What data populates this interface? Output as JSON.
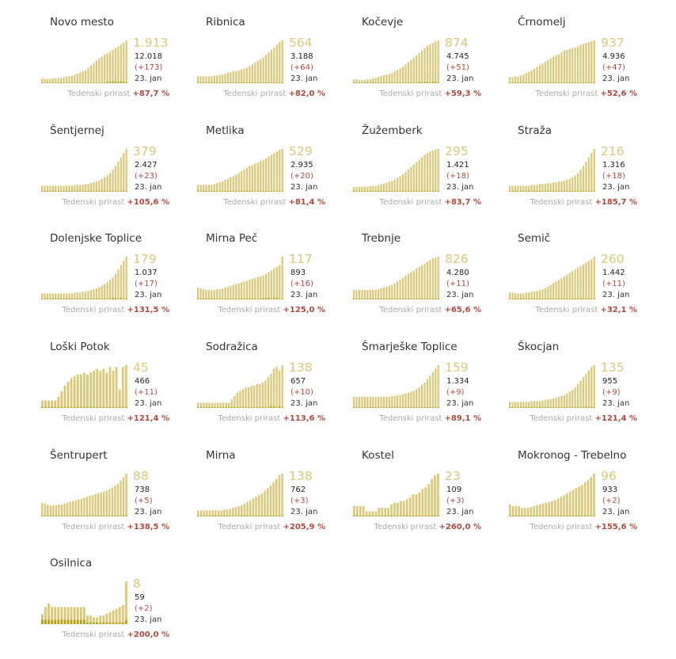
{
  "growth_label": "Tedenski prirast",
  "date_label": "23. jan",
  "colors": {
    "bar_light": "#dcc878",
    "bar_dark": "#b8a018",
    "positive": "#b04a40"
  },
  "chart_data": [
    {
      "type": "bar",
      "title": "Novo mesto",
      "value": "1.913",
      "total": "12.018",
      "delta": "(+173)",
      "growth": "+87,7 %",
      "values": [
        8,
        8,
        7,
        7,
        8,
        8,
        9,
        9,
        10,
        11,
        12,
        12,
        14,
        16,
        18,
        20,
        22,
        26,
        30,
        34,
        38,
        42,
        45,
        48,
        50,
        53,
        56,
        59,
        62,
        65,
        68,
        72
      ],
      "darks": [
        1,
        1,
        1,
        1,
        1,
        1,
        1,
        1,
        1,
        1,
        1,
        1,
        1,
        1,
        1,
        1,
        1,
        1,
        1,
        1,
        1,
        1,
        1,
        1,
        3,
        3,
        3,
        3,
        3,
        3,
        3,
        2
      ]
    },
    {
      "type": "bar",
      "title": "Ribnica",
      "value": "564",
      "total": "3.188",
      "delta": "(+64)",
      "growth": "+82,0 %",
      "values": [
        8,
        8,
        8,
        8,
        8,
        8,
        9,
        9,
        10,
        10,
        11,
        12,
        13,
        14,
        14,
        15,
        16,
        17,
        18,
        20,
        22,
        24,
        26,
        28,
        30,
        33,
        36,
        39,
        42,
        45,
        48,
        50
      ],
      "darks": [
        1,
        1,
        1,
        1,
        1,
        1,
        1,
        1,
        1,
        1,
        1,
        1,
        1,
        1,
        1,
        1,
        1,
        1,
        1,
        1,
        1,
        1,
        1,
        1,
        1,
        1,
        1,
        1,
        1,
        1,
        1,
        1
      ]
    },
    {
      "type": "bar",
      "title": "Kočevje",
      "value": "874",
      "total": "4.745",
      "delta": "(+51)",
      "growth": "+59,3 %",
      "values": [
        5,
        5,
        4,
        4,
        4,
        5,
        5,
        6,
        7,
        8,
        9,
        10,
        11,
        12,
        13,
        15,
        17,
        19,
        21,
        24,
        27,
        30,
        33,
        36,
        39,
        42,
        45,
        48,
        50,
        52,
        54,
        55
      ],
      "darks": [
        1,
        1,
        1,
        1,
        1,
        1,
        1,
        1,
        1,
        1,
        1,
        1,
        1,
        1,
        1,
        1,
        1,
        1,
        1,
        1,
        1,
        1,
        1,
        1,
        2,
        1,
        2,
        2,
        1,
        2,
        2,
        1
      ]
    },
    {
      "type": "bar",
      "title": "Črnomelj",
      "value": "937",
      "total": "4.936",
      "delta": "(+47)",
      "growth": "+52,6 %",
      "values": [
        7,
        7,
        8,
        8,
        9,
        10,
        12,
        13,
        15,
        17,
        19,
        21,
        23,
        25,
        27,
        29,
        31,
        33,
        34,
        36,
        38,
        39,
        40,
        41,
        42,
        43,
        45,
        46,
        47,
        48,
        49,
        50
      ],
      "darks": [
        1,
        1,
        1,
        1,
        1,
        1,
        1,
        1,
        1,
        1,
        1,
        1,
        1,
        1,
        1,
        1,
        1,
        1,
        1,
        1,
        1,
        1,
        1,
        1,
        1,
        1,
        1,
        1,
        1,
        1,
        1,
        1
      ]
    },
    {
      "type": "bar",
      "title": "Šentjernej",
      "value": "379",
      "total": "2.427",
      "delta": "(+23)",
      "growth": "+105,6 %",
      "values": [
        7,
        7,
        7,
        7,
        7,
        7,
        7,
        7,
        7,
        7,
        7,
        7,
        8,
        8,
        8,
        8,
        9,
        9,
        10,
        11,
        12,
        13,
        15,
        17,
        19,
        22,
        26,
        30,
        35,
        40,
        45,
        50
      ],
      "darks": [
        1,
        1,
        1,
        1,
        1,
        1,
        1,
        1,
        1,
        1,
        1,
        1,
        1,
        1,
        1,
        1,
        1,
        1,
        1,
        1,
        1,
        1,
        1,
        1,
        1,
        1,
        1,
        1,
        1,
        1,
        1,
        1
      ]
    },
    {
      "type": "bar",
      "title": "Metlika",
      "value": "529",
      "total": "2.935",
      "delta": "(+20)",
      "growth": "+81,4 %",
      "values": [
        8,
        8,
        8,
        8,
        8,
        8,
        9,
        10,
        11,
        12,
        14,
        15,
        17,
        18,
        20,
        22,
        24,
        26,
        28,
        30,
        31,
        33,
        34,
        36,
        37,
        39,
        41,
        43,
        45,
        47,
        49,
        50
      ],
      "darks": [
        1,
        1,
        1,
        1,
        1,
        1,
        1,
        1,
        1,
        1,
        1,
        1,
        1,
        1,
        1,
        1,
        1,
        1,
        1,
        1,
        1,
        1,
        1,
        1,
        1,
        1,
        1,
        1,
        1,
        1,
        1,
        1
      ]
    },
    {
      "type": "bar",
      "title": "Žužemberk",
      "value": "295",
      "total": "1.421",
      "delta": "(+18)",
      "growth": "+83,7 %",
      "values": [
        6,
        6,
        6,
        6,
        6,
        6,
        7,
        7,
        7,
        8,
        9,
        10,
        11,
        12,
        13,
        15,
        17,
        19,
        21,
        24,
        27,
        30,
        33,
        36,
        39,
        42,
        45,
        47,
        49,
        50,
        51,
        52
      ],
      "darks": [
        1,
        1,
        1,
        1,
        1,
        1,
        1,
        1,
        1,
        1,
        1,
        1,
        1,
        1,
        1,
        1,
        1,
        1,
        1,
        1,
        1,
        1,
        1,
        1,
        1,
        1,
        1,
        1,
        1,
        1,
        1,
        1
      ]
    },
    {
      "type": "bar",
      "title": "Straža",
      "value": "216",
      "total": "1.316",
      "delta": "(+18)",
      "growth": "+185,7 %",
      "values": [
        7,
        7,
        7,
        7,
        7,
        7,
        7,
        7,
        8,
        8,
        8,
        9,
        9,
        9,
        10,
        10,
        11,
        11,
        12,
        12,
        13,
        14,
        15,
        17,
        19,
        22,
        26,
        30,
        35,
        40,
        45,
        50
      ],
      "darks": [
        1,
        1,
        1,
        1,
        1,
        1,
        1,
        1,
        1,
        1,
        1,
        1,
        1,
        1,
        1,
        1,
        1,
        1,
        1,
        1,
        1,
        1,
        1,
        1,
        1,
        1,
        1,
        1,
        1,
        1,
        1,
        1
      ]
    },
    {
      "type": "bar",
      "title": "Dolenjske Toplice",
      "value": "179",
      "total": "1.037",
      "delta": "(+17)",
      "growth": "+131,5 %",
      "values": [
        7,
        7,
        7,
        7,
        7,
        7,
        7,
        7,
        7,
        7,
        7,
        7,
        8,
        8,
        8,
        9,
        9,
        10,
        11,
        12,
        13,
        14,
        16,
        18,
        20,
        23,
        26,
        30,
        35,
        40,
        45,
        50
      ],
      "darks": [
        1,
        1,
        1,
        1,
        1,
        1,
        1,
        1,
        1,
        1,
        1,
        1,
        1,
        1,
        1,
        1,
        1,
        1,
        1,
        1,
        1,
        1,
        1,
        1,
        1,
        1,
        2,
        2,
        1,
        2,
        1,
        1
      ]
    },
    {
      "type": "bar",
      "title": "Mirna Peč",
      "value": "117",
      "total": "893",
      "delta": "(+16)",
      "growth": "+125,0 %",
      "values": [
        14,
        13,
        12,
        11,
        11,
        11,
        11,
        12,
        12,
        13,
        14,
        15,
        16,
        17,
        18,
        19,
        20,
        21,
        22,
        23,
        24,
        25,
        26,
        27,
        28,
        30,
        32,
        34,
        36,
        38,
        40,
        50
      ],
      "darks": [
        1,
        1,
        1,
        1,
        1,
        1,
        1,
        1,
        1,
        1,
        1,
        1,
        1,
        1,
        1,
        1,
        1,
        1,
        1,
        1,
        1,
        1,
        1,
        1,
        2,
        2,
        2,
        1,
        2,
        2,
        1,
        1
      ]
    },
    {
      "type": "bar",
      "title": "Trebnje",
      "value": "826",
      "total": "4.280",
      "delta": "(+11)",
      "growth": "+65,6 %",
      "values": [
        11,
        11,
        11,
        11,
        11,
        11,
        11,
        11,
        11,
        12,
        13,
        14,
        15,
        16,
        17,
        19,
        21,
        23,
        25,
        28,
        30,
        32,
        34,
        36,
        38,
        40,
        42,
        44,
        46,
        48,
        49,
        50
      ],
      "darks": [
        1,
        1,
        1,
        1,
        1,
        1,
        1,
        1,
        1,
        1,
        1,
        1,
        1,
        1,
        1,
        1,
        1,
        1,
        1,
        1,
        1,
        1,
        1,
        1,
        1,
        1,
        1,
        1,
        1,
        1,
        1,
        1
      ]
    },
    {
      "type": "bar",
      "title": "Semič",
      "value": "260",
      "total": "1.442",
      "delta": "(+11)",
      "growth": "+32,1 %",
      "values": [
        8,
        8,
        7,
        7,
        7,
        7,
        8,
        8,
        9,
        9,
        10,
        11,
        12,
        13,
        15,
        17,
        19,
        21,
        23,
        25,
        27,
        29,
        31,
        33,
        35,
        37,
        39,
        41,
        43,
        45,
        47,
        50
      ],
      "darks": [
        1,
        1,
        1,
        1,
        1,
        1,
        1,
        1,
        1,
        1,
        1,
        1,
        1,
        1,
        1,
        1,
        1,
        1,
        1,
        1,
        1,
        1,
        1,
        1,
        1,
        1,
        1,
        1,
        1,
        1,
        1,
        1
      ]
    },
    {
      "type": "bar",
      "title": "Loški Potok",
      "value": "45",
      "total": "466",
      "delta": "(+11)",
      "growth": "+121,4 %",
      "values": [
        8,
        8,
        8,
        8,
        8,
        12,
        18,
        24,
        28,
        32,
        34,
        36,
        36,
        38,
        36,
        38,
        40,
        42,
        40,
        42,
        38,
        44,
        40,
        44,
        20,
        44,
        46
      ],
      "darks": [
        1,
        1,
        1,
        1,
        1,
        1,
        1,
        1,
        1,
        1,
        1,
        1,
        1,
        1,
        1,
        1,
        1,
        1,
        1,
        1,
        1,
        1,
        1,
        1,
        1,
        1,
        1
      ]
    },
    {
      "type": "bar",
      "title": "Sodražica",
      "value": "138",
      "total": "657",
      "delta": "(+10)",
      "growth": "+113,6 %",
      "values": [
        6,
        6,
        6,
        6,
        6,
        6,
        6,
        6,
        6,
        6,
        6,
        6,
        10,
        14,
        18,
        20,
        22,
        24,
        24,
        26,
        26,
        28,
        28,
        30,
        32,
        36,
        40,
        46,
        48,
        44,
        50
      ],
      "darks": [
        1,
        1,
        1,
        1,
        1,
        1,
        1,
        1,
        1,
        1,
        1,
        1,
        1,
        1,
        1,
        1,
        1,
        1,
        1,
        1,
        1,
        1,
        1,
        1,
        1,
        1,
        2,
        2,
        1,
        2,
        1
      ]
    },
    {
      "type": "bar",
      "title": "Šmarješke Toplice",
      "value": "159",
      "total": "1.334",
      "delta": "(+9)",
      "growth": "+89,1 %",
      "values": [
        13,
        13,
        13,
        13,
        13,
        13,
        13,
        13,
        13,
        13,
        13,
        13,
        13,
        13,
        14,
        14,
        15,
        15,
        16,
        17,
        18,
        19,
        20,
        22,
        24,
        27,
        30,
        34,
        38,
        42,
        46,
        50
      ],
      "darks": [
        1,
        1,
        1,
        1,
        1,
        1,
        1,
        1,
        1,
        1,
        1,
        1,
        1,
        1,
        1,
        1,
        1,
        1,
        1,
        1,
        1,
        1,
        1,
        1,
        1,
        1,
        1,
        1,
        1,
        1,
        1,
        1
      ]
    },
    {
      "type": "bar",
      "title": "Škocjan",
      "value": "135",
      "total": "955",
      "delta": "(+9)",
      "growth": "+121,4 %",
      "values": [
        7,
        7,
        7,
        7,
        7,
        7,
        7,
        7,
        8,
        8,
        8,
        8,
        9,
        9,
        10,
        10,
        11,
        12,
        13,
        14,
        15,
        17,
        19,
        21,
        24,
        28,
        32,
        36,
        40,
        44,
        48,
        50
      ],
      "darks": [
        1,
        1,
        1,
        1,
        1,
        1,
        1,
        1,
        1,
        1,
        1,
        1,
        1,
        1,
        1,
        1,
        1,
        1,
        1,
        1,
        1,
        1,
        1,
        1,
        1,
        1,
        1,
        1,
        2,
        1,
        1,
        1
      ]
    },
    {
      "type": "bar",
      "title": "Šentrupert",
      "value": "88",
      "total": "738",
      "delta": "(+5)",
      "growth": "+138,5 %",
      "values": [
        16,
        15,
        14,
        13,
        13,
        13,
        14,
        14,
        15,
        16,
        17,
        18,
        19,
        20,
        21,
        22,
        23,
        24,
        25,
        26,
        27,
        28,
        29,
        30,
        32,
        34,
        36,
        38,
        42,
        46,
        50
      ],
      "darks": [
        1,
        1,
        1,
        1,
        1,
        1,
        1,
        1,
        1,
        1,
        1,
        1,
        1,
        1,
        1,
        1,
        1,
        1,
        1,
        1,
        1,
        1,
        1,
        1,
        1,
        1,
        1,
        1,
        1,
        1,
        1
      ]
    },
    {
      "type": "bar",
      "title": "Mirna",
      "value": "138",
      "total": "762",
      "delta": "(+3)",
      "growth": "+205,9 %",
      "values": [
        7,
        7,
        7,
        7,
        7,
        7,
        7,
        7,
        7,
        8,
        8,
        9,
        10,
        11,
        12,
        13,
        15,
        17,
        19,
        21,
        23,
        25,
        27,
        30,
        33,
        36,
        40,
        44,
        48,
        50
      ],
      "darks": [
        1,
        1,
        1,
        1,
        1,
        1,
        1,
        1,
        1,
        1,
        1,
        1,
        1,
        1,
        1,
        1,
        1,
        1,
        1,
        1,
        1,
        1,
        1,
        1,
        1,
        1,
        1,
        1,
        1,
        1
      ]
    },
    {
      "type": "bar",
      "title": "Kostel",
      "value": "23",
      "total": "109",
      "delta": "(+3)",
      "growth": "+260,0 %",
      "values": [
        12,
        12,
        12,
        12,
        6,
        6,
        6,
        6,
        10,
        10,
        10,
        10,
        14,
        16,
        16,
        18,
        18,
        20,
        22,
        26,
        26,
        28,
        32,
        34,
        38,
        44,
        48,
        50
      ],
      "darks": [
        1,
        1,
        1,
        1,
        1,
        1,
        1,
        1,
        1,
        1,
        1,
        1,
        1,
        1,
        1,
        1,
        1,
        1,
        1,
        1,
        1,
        1,
        1,
        1,
        1,
        1,
        1,
        1
      ]
    },
    {
      "type": "bar",
      "title": "Mokronog - Trebelno",
      "value": "96",
      "total": "933",
      "delta": "(+2)",
      "growth": "+155,6 %",
      "values": [
        14,
        12,
        12,
        12,
        10,
        10,
        10,
        11,
        12,
        13,
        14,
        15,
        16,
        17,
        18,
        19,
        21,
        23,
        25,
        27,
        29,
        31,
        33,
        35,
        37,
        40,
        43,
        46,
        50
      ],
      "darks": [
        1,
        1,
        1,
        1,
        1,
        1,
        1,
        1,
        1,
        1,
        1,
        1,
        1,
        1,
        1,
        1,
        1,
        1,
        1,
        1,
        1,
        1,
        1,
        1,
        1,
        1,
        1,
        1,
        1
      ]
    },
    {
      "type": "bar",
      "title": "Osilnica",
      "value": "8",
      "total": "59",
      "delta": "(+2)",
      "growth": "+200,0 %",
      "values": [
        12,
        20,
        24,
        20,
        20,
        20,
        20,
        20,
        20,
        20,
        20,
        20,
        20,
        20,
        10,
        10,
        8,
        8,
        10,
        10,
        12,
        14,
        16,
        18,
        20,
        22,
        50
      ],
      "darks": [
        5,
        5,
        5,
        5,
        5,
        5,
        5,
        5,
        5,
        5,
        5,
        5,
        5,
        5,
        2,
        2,
        2,
        2,
        2,
        2,
        2,
        2,
        2,
        2,
        2,
        2,
        5
      ]
    }
  ]
}
